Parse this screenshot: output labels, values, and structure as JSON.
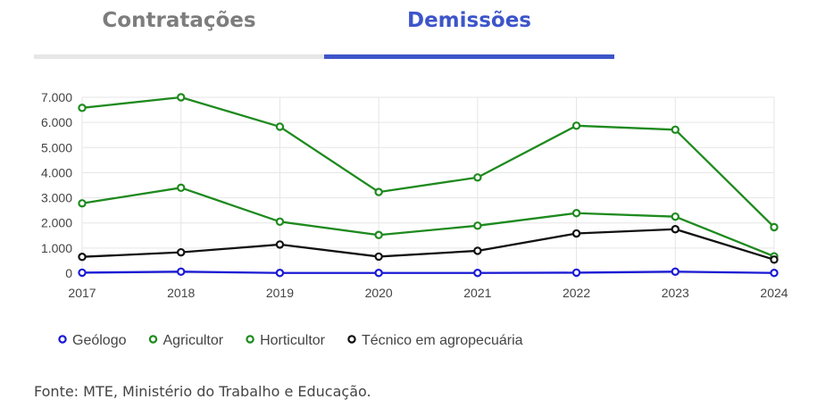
{
  "tabs": [
    {
      "label": "Contratações",
      "active": false
    },
    {
      "label": "Demissões",
      "active": true
    }
  ],
  "colors": {
    "active_tab": "#3d55c9",
    "inactive_tab_text": "#7d7d7d",
    "inactive_tab_bar": "#e6e6e6",
    "grid": "#e5e5e5",
    "axis_text": "#444444"
  },
  "chart_data": {
    "type": "line",
    "x": [
      2017,
      2018,
      2019,
      2020,
      2021,
      2022,
      2023,
      2024
    ],
    "ylim": [
      0,
      7000
    ],
    "yticks": [
      0,
      1000,
      2000,
      3000,
      4000,
      5000,
      6000,
      7000
    ],
    "ytick_labels": [
      "0",
      "1.000",
      "2.000",
      "3.000",
      "4.000",
      "5.000",
      "6.000",
      "7.000"
    ],
    "grid": true,
    "legend_position": "bottom-left",
    "series": [
      {
        "name": "Geólogo",
        "color": "#1a1ad4",
        "values": [
          20,
          60,
          10,
          10,
          10,
          20,
          60,
          10
        ]
      },
      {
        "name": "Agricultor",
        "color": "#1e8a1e",
        "values": [
          6580,
          7000,
          5830,
          3230,
          3810,
          5870,
          5710,
          1830
        ]
      },
      {
        "name": "Horticultor",
        "color": "#1e8a1e",
        "values": [
          2780,
          3400,
          2050,
          1520,
          1890,
          2390,
          2250,
          670
        ]
      },
      {
        "name": "Técnico em agropecuária",
        "color": "#111111",
        "values": [
          650,
          830,
          1140,
          660,
          890,
          1580,
          1750,
          540
        ]
      }
    ]
  },
  "footer": {
    "source": "Fonte: MTE, Ministério do Trabalho e Educação."
  }
}
